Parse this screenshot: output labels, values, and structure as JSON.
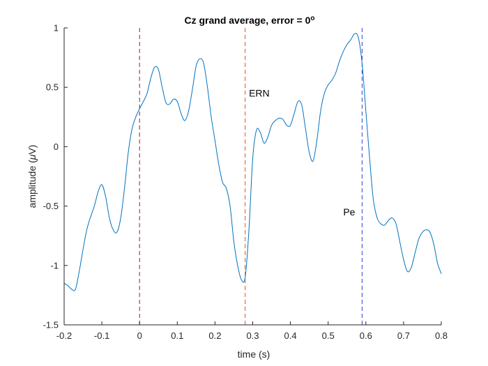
{
  "chart_data": {
    "type": "line",
    "title": "Cz grand average, error = 0",
    "title_superscript": "o",
    "xlabel": "time (s)",
    "ylabel_prefix": "amplitude (",
    "ylabel_greek": "μ",
    "ylabel_suffix": "V)",
    "xlim": [
      -0.2,
      0.8
    ],
    "ylim": [
      -1.5,
      1
    ],
    "xticks": [
      -0.2,
      -0.1,
      0,
      0.1,
      0.2,
      0.3,
      0.4,
      0.5,
      0.6,
      0.7,
      0.8
    ],
    "xtick_labels": [
      "-0.2",
      "-0.1",
      "0",
      "0.1",
      "0.2",
      "0.3",
      "0.4",
      "0.5",
      "0.6",
      "0.7",
      "0.8"
    ],
    "yticks": [
      -1.5,
      -1,
      -0.5,
      0,
      0.5,
      1
    ],
    "ytick_labels": [
      "-1.5",
      "-1",
      "-0.5",
      "0",
      "0.5",
      "1"
    ],
    "grid": false,
    "series": [
      {
        "color": "#0072bd",
        "x": [
          -0.2,
          -0.19,
          -0.18,
          -0.17,
          -0.16,
          -0.14,
          -0.12,
          -0.11,
          -0.1,
          -0.09,
          -0.08,
          -0.07,
          -0.06,
          -0.05,
          -0.04,
          -0.03,
          -0.02,
          -0.01,
          0.0,
          0.01,
          0.02,
          0.03,
          0.04,
          0.05,
          0.06,
          0.07,
          0.08,
          0.09,
          0.1,
          0.11,
          0.12,
          0.13,
          0.14,
          0.15,
          0.16,
          0.17,
          0.18,
          0.19,
          0.2,
          0.21,
          0.22,
          0.23,
          0.24,
          0.25,
          0.26,
          0.27,
          0.28,
          0.29,
          0.3,
          0.31,
          0.32,
          0.33,
          0.34,
          0.35,
          0.36,
          0.37,
          0.38,
          0.39,
          0.4,
          0.41,
          0.42,
          0.43,
          0.44,
          0.45,
          0.46,
          0.47,
          0.48,
          0.49,
          0.5,
          0.51,
          0.52,
          0.53,
          0.54,
          0.55,
          0.56,
          0.57,
          0.58,
          0.59,
          0.6,
          0.61,
          0.62,
          0.63,
          0.64,
          0.65,
          0.66,
          0.67,
          0.68,
          0.69,
          0.7,
          0.71,
          0.72,
          0.73,
          0.74,
          0.75,
          0.76,
          0.77,
          0.78,
          0.79,
          0.8
        ],
        "y": [
          -1.15,
          -1.17,
          -1.2,
          -1.2,
          -1.05,
          -0.7,
          -0.5,
          -0.38,
          -0.32,
          -0.42,
          -0.6,
          -0.7,
          -0.72,
          -0.6,
          -0.35,
          -0.05,
          0.15,
          0.25,
          0.32,
          0.38,
          0.45,
          0.58,
          0.67,
          0.65,
          0.5,
          0.37,
          0.36,
          0.4,
          0.38,
          0.28,
          0.22,
          0.3,
          0.48,
          0.68,
          0.74,
          0.7,
          0.5,
          0.25,
          0.05,
          -0.15,
          -0.3,
          -0.35,
          -0.5,
          -0.8,
          -1.0,
          -1.12,
          -1.1,
          -0.7,
          -0.1,
          0.14,
          0.12,
          0.03,
          0.08,
          0.18,
          0.22,
          0.24,
          0.23,
          0.18,
          0.18,
          0.28,
          0.38,
          0.35,
          0.15,
          -0.05,
          -0.12,
          0.05,
          0.3,
          0.45,
          0.52,
          0.56,
          0.62,
          0.72,
          0.8,
          0.86,
          0.9,
          0.95,
          0.92,
          0.7,
          0.3,
          -0.1,
          -0.45,
          -0.6,
          -0.65,
          -0.66,
          -0.62,
          -0.6,
          -0.65,
          -0.8,
          -0.95,
          -1.05,
          -1.02,
          -0.9,
          -0.78,
          -0.72,
          -0.7,
          -0.72,
          -0.82,
          -0.98,
          -1.07
        ]
      }
    ],
    "vlines": [
      {
        "x": 0,
        "color": "#a2142f"
      },
      {
        "x": 0.28,
        "color": "#d95319"
      },
      {
        "x": 0.59,
        "color": "#2e3cd6"
      }
    ],
    "annotations": [
      {
        "text": "ERN",
        "x": 0.29,
        "y": 0.45
      },
      {
        "text": "Pe",
        "x": 0.54,
        "y": -0.55
      }
    ]
  }
}
